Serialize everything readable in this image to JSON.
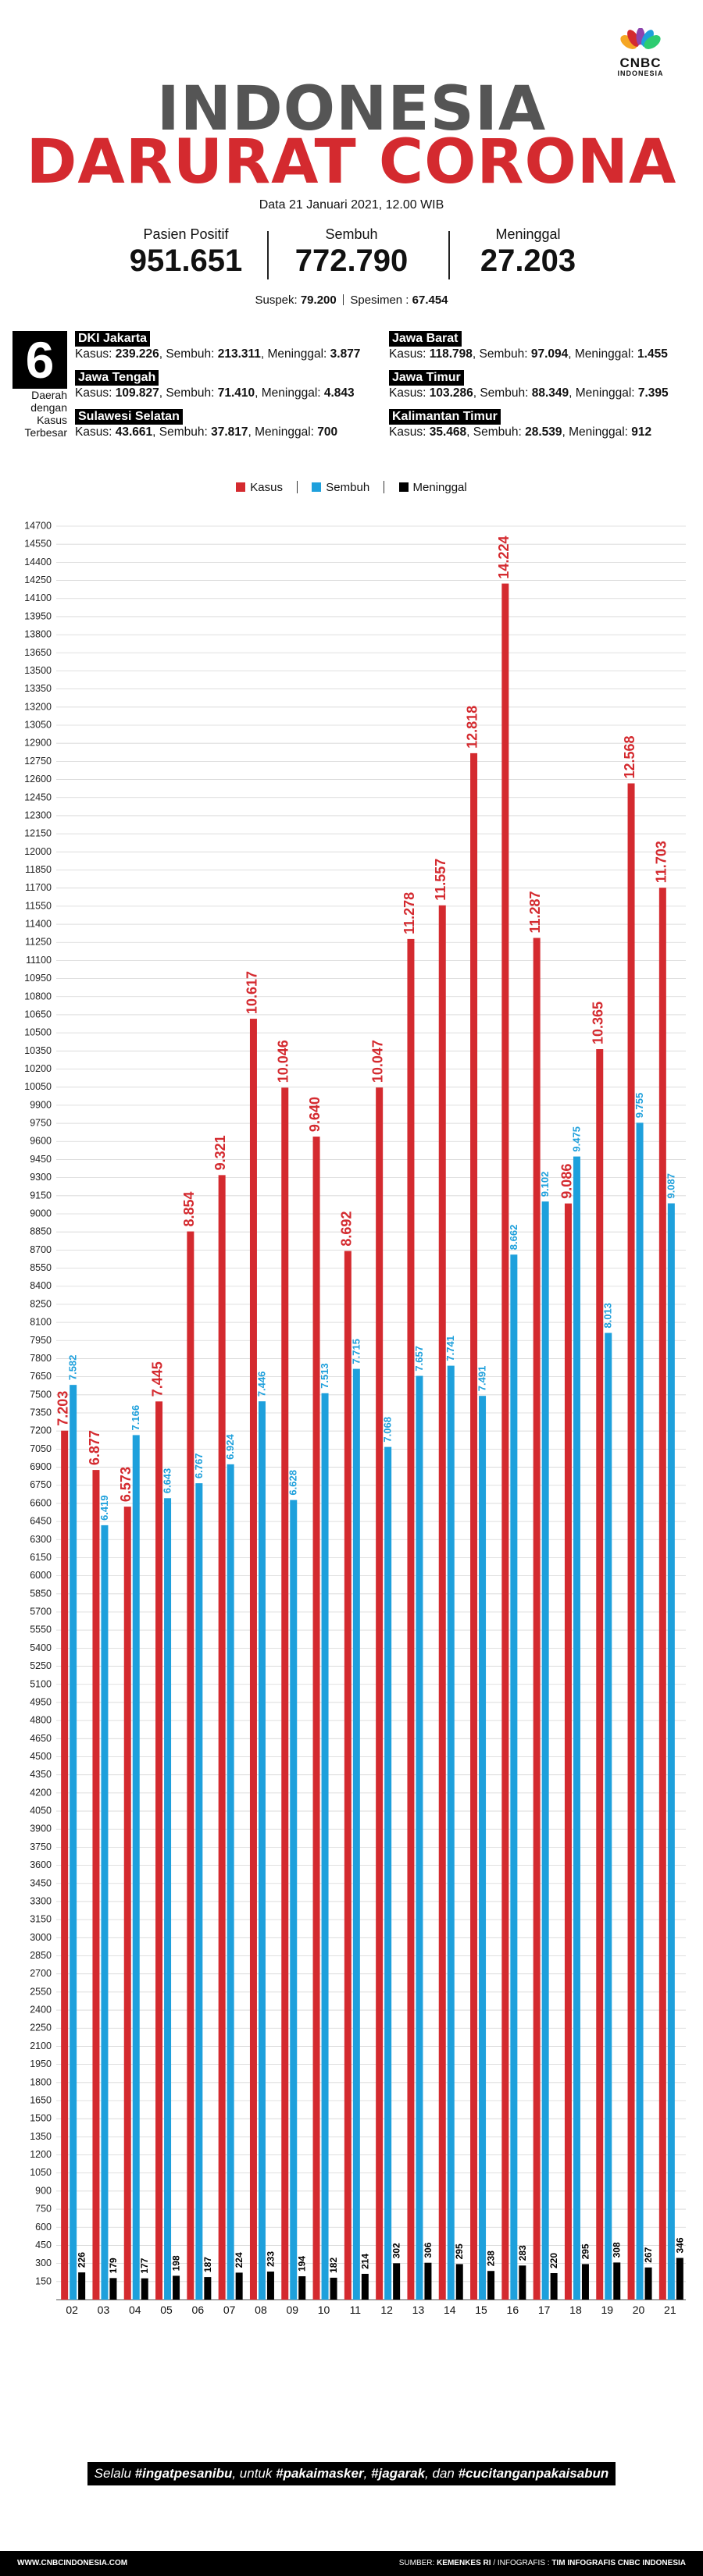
{
  "brand": {
    "name": "CNBC",
    "sub": "INDONESIA"
  },
  "header": {
    "title_line1": "INDONESIA",
    "title_line2": "DARURAT CORONA",
    "date": "Data 21 Januari 2021, 12.00 WIB"
  },
  "totals": [
    {
      "label": "Pasien Positif",
      "value": "951.651"
    },
    {
      "label": "Sembuh",
      "value": "772.790"
    },
    {
      "label": "Meninggal",
      "value": "27.203"
    }
  ],
  "subline": {
    "suspek_label": "Suspek:",
    "suspek_value": "79.200",
    "spesimen_label": "Spesimen :",
    "spesimen_value": "67.454"
  },
  "regions": {
    "count": "6",
    "caption_lines": [
      "Daerah",
      "dengan",
      "Kasus",
      "Terbesar"
    ],
    "items": [
      {
        "name": "DKI Jakarta",
        "kasus": "239.226",
        "sembuh": "213.311",
        "meninggal": "3.877"
      },
      {
        "name": "Jawa Barat",
        "kasus": "118.798",
        "sembuh": "97.094",
        "meninggal": "1.455"
      },
      {
        "name": "Jawa Tengah",
        "kasus": "109.827",
        "sembuh": "71.410",
        "meninggal": "4.843"
      },
      {
        "name": "Jawa Timur",
        "kasus": "103.286",
        "sembuh": "88.349",
        "meninggal": "7.395"
      },
      {
        "name": "Sulawesi Selatan",
        "kasus": "43.661",
        "sembuh": "37.817",
        "meninggal": "700"
      },
      {
        "name": "Kalimantan Timur",
        "kasus": "35.468",
        "sembuh": "28.539",
        "meninggal": "912"
      }
    ],
    "labels": {
      "kasus": "Kasus:",
      "sembuh": "Sembuh:",
      "meninggal": "Meninggal:"
    }
  },
  "colors": {
    "kasus": "#d42a2f",
    "sembuh": "#1ea0dc",
    "meninggal": "#000000",
    "title_gray": "#555555"
  },
  "chart_data": {
    "type": "bar",
    "xlabel": "Januari",
    "categories": [
      "02",
      "03",
      "04",
      "05",
      "06",
      "07",
      "08",
      "09",
      "10",
      "11",
      "12",
      "13",
      "14",
      "15",
      "16",
      "17",
      "18",
      "19",
      "20",
      "21"
    ],
    "ylim": [
      0,
      14700
    ],
    "ystep": 150,
    "grid": true,
    "legend_position": "top",
    "series": [
      {
        "name": "Kasus",
        "color": "#d42a2f",
        "values": [
          7203,
          6877,
          6573,
          7445,
          8854,
          9321,
          10617,
          10046,
          9640,
          8692,
          10047,
          11278,
          11557,
          12818,
          14224,
          11287,
          9086,
          10365,
          12568,
          11703
        ],
        "labels": [
          "7.203",
          "6.877",
          "6.573",
          "7.445",
          "8.854",
          "9.321",
          "10.617",
          "10.046",
          "9.640",
          "8.692",
          "10.047",
          "11.278",
          "11.557",
          "12.818",
          "14.224",
          "11.287",
          "9.086",
          "10.365",
          "12.568",
          "11.703"
        ]
      },
      {
        "name": "Sembuh",
        "color": "#1ea0dc",
        "values": [
          7582,
          6419,
          7166,
          6643,
          6767,
          6924,
          7446,
          6628,
          7513,
          7715,
          7068,
          7657,
          7741,
          7491,
          8662,
          9102,
          9475,
          8013,
          9755,
          9087
        ],
        "labels": [
          "7.582",
          "6.419",
          "7.166",
          "6.643",
          "6.767",
          "6.924",
          "7.446",
          "6.628",
          "7.513",
          "7.715",
          "7.068",
          "7.657",
          "7.741",
          "7.491",
          "8.662",
          "9.102",
          "9.475",
          "8.013",
          "9.755",
          "9.087"
        ]
      },
      {
        "name": "Meninggal",
        "color": "#000000",
        "values": [
          226,
          179,
          177,
          198,
          187,
          224,
          233,
          194,
          182,
          214,
          302,
          306,
          295,
          238,
          283,
          220,
          295,
          308,
          267,
          346
        ],
        "labels": [
          "226",
          "179",
          "177",
          "198",
          "187",
          "224",
          "233",
          "194",
          "182",
          "214",
          "302",
          "306",
          "295",
          "238",
          "283",
          "220",
          "295",
          "308",
          "267",
          "346"
        ]
      }
    ]
  },
  "footer": {
    "slogan_parts": [
      "Selalu ",
      "#ingatpesanibu",
      ", untuk ",
      "#pakaimasker",
      ", ",
      "#jagarak",
      ", dan ",
      "#cucitanganpakaisabun"
    ],
    "website": "WWW.CNBCINDONESIA.COM",
    "source_label": "SUMBER:",
    "source_value": "KEMENKES RI",
    "credit_label": "/ INFOGRAFIS :",
    "credit_value": "TIM INFOGRAFIS CNBC INDONESIA"
  }
}
